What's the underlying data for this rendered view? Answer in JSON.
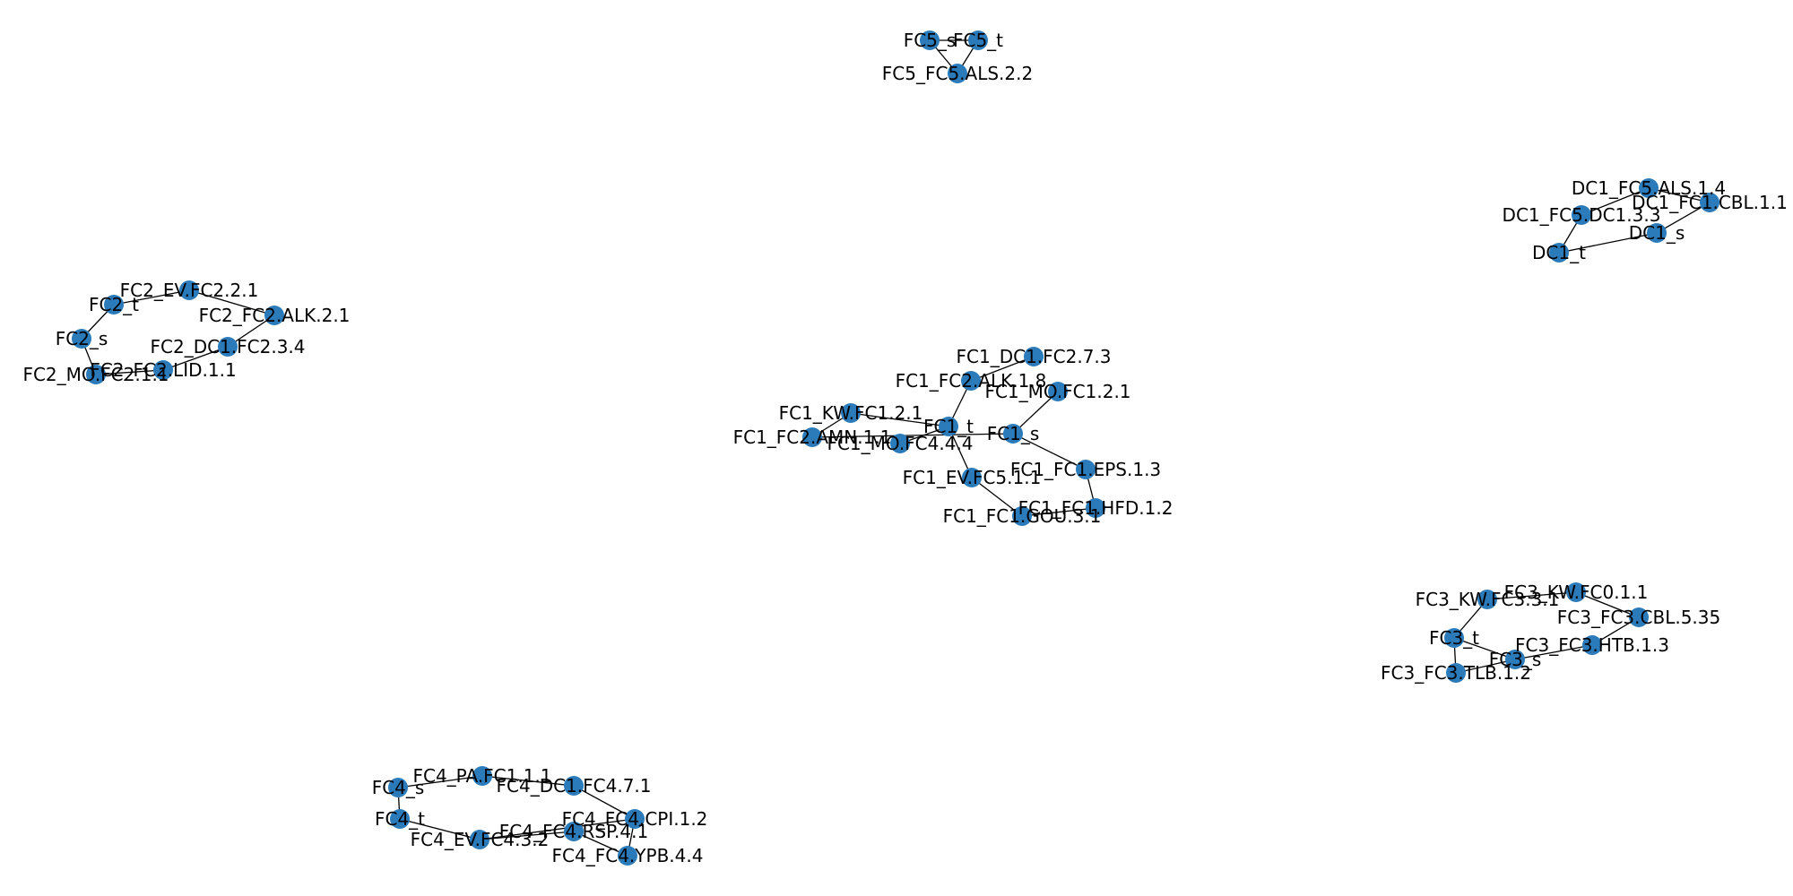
{
  "graph": {
    "node_color": "#2b7bba",
    "edge_color": "#000000",
    "components": [
      {
        "id": "FC5",
        "nodes": [
          "FC5_s",
          "FC5_t",
          "FC5_FC5.ALS.2.2"
        ],
        "edges": [
          [
            "FC5_s",
            "FC5_t"
          ],
          [
            "FC5_s",
            "FC5_FC5.ALS.2.2"
          ],
          [
            "FC5_t",
            "FC5_FC5.ALS.2.2"
          ]
        ]
      },
      {
        "id": "DC1",
        "nodes": [
          "DC1_FC5.ALS.1.4",
          "DC1_FC1.CBL.1.1",
          "DC1_FC5.DC1.3.3",
          "DC1_s",
          "DC1_t"
        ],
        "edges": [
          [
            "DC1_FC5.ALS.1.4",
            "DC1_FC1.CBL.1.1"
          ],
          [
            "DC1_FC5.ALS.1.4",
            "DC1_FC5.DC1.3.3"
          ],
          [
            "DC1_FC1.CBL.1.1",
            "DC1_s"
          ],
          [
            "DC1_FC5.DC1.3.3",
            "DC1_t"
          ],
          [
            "DC1_s",
            "DC1_t"
          ]
        ]
      },
      {
        "id": "FC2",
        "nodes": [
          "FC2_EV.FC2.2.1",
          "FC2_t",
          "FC2_FC2.ALK.2.1",
          "FC2_s",
          "FC2_DC1.FC2.3.4",
          "FC2_FC2.LID.1.1",
          "FC2_MO.FC2.1.1"
        ],
        "edges": [
          [
            "FC2_t",
            "FC2_EV.FC2.2.1"
          ],
          [
            "FC2_EV.FC2.2.1",
            "FC2_FC2.ALK.2.1"
          ],
          [
            "FC2_t",
            "FC2_s"
          ],
          [
            "FC2_s",
            "FC2_MO.FC2.1.1"
          ],
          [
            "FC2_MO.FC2.1.1",
            "FC2_FC2.LID.1.1"
          ],
          [
            "FC2_FC2.LID.1.1",
            "FC2_DC1.FC2.3.4"
          ],
          [
            "FC2_DC1.FC2.3.4",
            "FC2_FC2.ALK.2.1"
          ]
        ]
      },
      {
        "id": "FC1",
        "nodes": [
          "FC1_DC1.FC2.7.3",
          "FC1_FC2.ALK.1.8",
          "FC1_MO.FC1.2.1",
          "FC1_KW.FC1.2.1",
          "FC1_t",
          "FC1_s",
          "FC1_FC2.AMN.1.1",
          "FC1_MO.FC4.4.4",
          "FC1_FC1.EPS.1.3",
          "FC1_EV.FC5.1.1",
          "FC1_FC1.HFD.1.2",
          "FC1_FC1.GOU.3.1"
        ],
        "edges": [
          [
            "FC1_DC1.FC2.7.3",
            "FC1_FC2.ALK.1.8"
          ],
          [
            "FC1_FC2.ALK.1.8",
            "FC1_t"
          ],
          [
            "FC1_MO.FC1.2.1",
            "FC1_s"
          ],
          [
            "FC1_KW.FC1.2.1",
            "FC1_t"
          ],
          [
            "FC1_KW.FC1.2.1",
            "FC1_FC2.AMN.1.1"
          ],
          [
            "FC1_FC2.AMN.1.1",
            "FC1_s"
          ],
          [
            "FC1_MO.FC4.4.4",
            "FC1_t"
          ],
          [
            "FC1_t",
            "FC1_EV.FC5.1.1"
          ],
          [
            "FC1_EV.FC5.1.1",
            "FC1_FC1.GOU.3.1"
          ],
          [
            "FC1_FC1.GOU.3.1",
            "FC1_FC1.HFD.1.2"
          ],
          [
            "FC1_FC1.HFD.1.2",
            "FC1_FC1.EPS.1.3"
          ],
          [
            "FC1_FC1.EPS.1.3",
            "FC1_s"
          ]
        ]
      },
      {
        "id": "FC3",
        "nodes": [
          "FC3_KW.FC0.1.1",
          "FC3_KW.FC3.3.1",
          "FC3_FC3.CBL.5.35",
          "FC3_t",
          "FC3_FC3.HTB.1.3",
          "FC3_s",
          "FC3_FC3.TLB.1.2"
        ],
        "edges": [
          [
            "FC3_KW.FC0.1.1",
            "FC3_KW.FC3.3.1"
          ],
          [
            "FC3_KW.FC0.1.1",
            "FC3_FC3.CBL.5.35"
          ],
          [
            "FC3_KW.FC3.3.1",
            "FC3_t"
          ],
          [
            "FC3_FC3.CBL.5.35",
            "FC3_FC3.HTB.1.3"
          ],
          [
            "FC3_FC3.HTB.1.3",
            "FC3_s"
          ],
          [
            "FC3_t",
            "FC3_s"
          ],
          [
            "FC3_t",
            "FC3_FC3.TLB.1.2"
          ],
          [
            "FC3_FC3.TLB.1.2",
            "FC3_s"
          ]
        ]
      },
      {
        "id": "FC4",
        "nodes": [
          "FC4_PA.FC1.1.1",
          "FC4_s",
          "FC4_DC1.FC4.7.1",
          "FC4_t",
          "FC4_FC4.CPI.1.2",
          "FC4_FC4.RSP.4.1",
          "FC4_EV.FC4.3.2",
          "FC4_FC4.YPB.4.4"
        ],
        "edges": [
          [
            "FC4_s",
            "FC4_PA.FC1.1.1"
          ],
          [
            "FC4_PA.FC1.1.1",
            "FC4_DC1.FC4.7.1"
          ],
          [
            "FC4_DC1.FC4.7.1",
            "FC4_FC4.CPI.1.2"
          ],
          [
            "FC4_FC4.CPI.1.2",
            "FC4_FC4.YPB.4.4"
          ],
          [
            "FC4_FC4.YPB.4.4",
            "FC4_FC4.RSP.4.1"
          ],
          [
            "FC4_FC4.RSP.4.1",
            "FC4_EV.FC4.3.2"
          ],
          [
            "FC4_EV.FC4.3.2",
            "FC4_t"
          ],
          [
            "FC4_s",
            "FC4_t"
          ],
          [
            "FC4_FC4.CPI.1.2",
            "FC4_EV.FC4.3.2"
          ]
        ]
      }
    ]
  }
}
